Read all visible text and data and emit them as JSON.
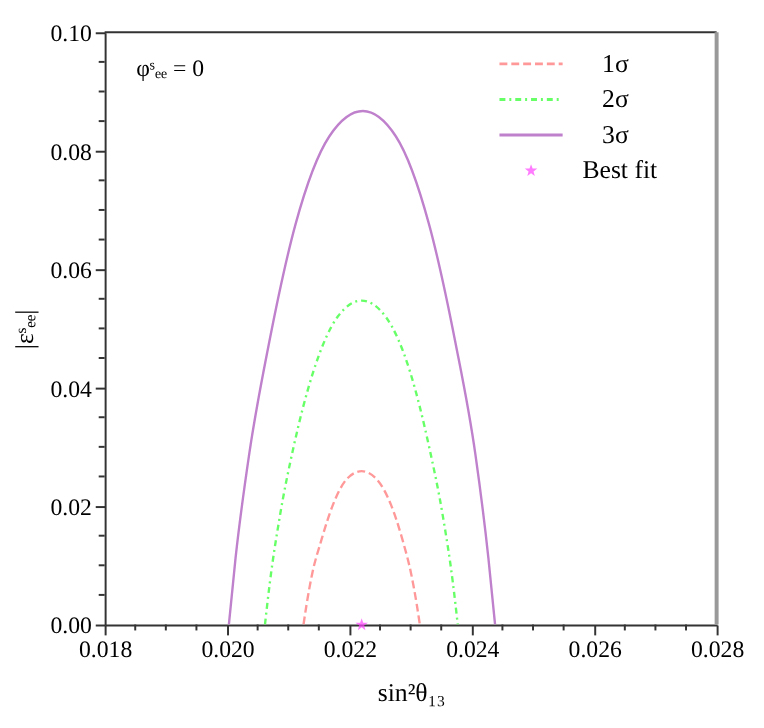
{
  "chart_data": {
    "type": "line",
    "xlabel": "sin²θ₁₃",
    "ylabel": "|εˢₑₑ|",
    "annotations": [
      "φˢₑₑ = 0"
    ],
    "series": [
      {
        "name": "1σ",
        "color": "#ff9999",
        "line_style": "dashed",
        "x": [
          0.02125,
          0.0213,
          0.02139,
          0.02154,
          0.02173,
          0.02196,
          0.0222,
          0.02244,
          0.02268,
          0.02287,
          0.02301,
          0.0231,
          0.02315
        ],
        "values": [
          0,
          0.0034,
          0.0085,
          0.0142,
          0.0202,
          0.0246,
          0.0259,
          0.0246,
          0.0202,
          0.0142,
          0.0085,
          0.0034,
          0
        ]
      },
      {
        "name": "2σ",
        "color": "#66ff66",
        "line_style": "dotted",
        "x": [
          0.02062,
          0.0207,
          0.02086,
          0.02109,
          0.02141,
          0.02181,
          0.0222,
          0.02259,
          0.02299,
          0.0233,
          0.02353,
          0.02369,
          0.02377
        ],
        "values": [
          0,
          0.0071,
          0.0181,
          0.0301,
          0.0427,
          0.052,
          0.0547,
          0.052,
          0.0427,
          0.0301,
          0.0181,
          0.0071,
          0
        ]
      },
      {
        "name": "3σ",
        "color": "#bf80cc",
        "line_style": "solid",
        "x": [
          0.02003,
          0.02014,
          0.02036,
          0.02069,
          0.02112,
          0.02167,
          0.02222,
          0.02276,
          0.0233,
          0.02373,
          0.02406,
          0.02427,
          0.02438
        ],
        "values": [
          0,
          0.0113,
          0.0286,
          0.0477,
          0.0676,
          0.0824,
          0.0867,
          0.0824,
          0.0676,
          0.0477,
          0.0286,
          0.0113,
          0
        ]
      },
      {
        "name": "Best fit",
        "type": "scatter",
        "marker": "star",
        "color": "#ff44ff",
        "x": [
          0.0222
        ],
        "values": [
          0
        ]
      }
    ],
    "xlim": [
      0.018,
      0.028
    ],
    "xticks": [
      0.018,
      {
        "value": 0.0185,
        "label": null
      },
      {
        "value": 0.019,
        "label": null
      },
      {
        "value": 0.0195,
        "label": null
      },
      {
        "value": 0.02,
        "label": "0.020"
      },
      {
        "value": 0.0205,
        "label": null
      },
      {
        "value": 0.021,
        "label": null
      },
      {
        "value": 0.0215,
        "label": null
      },
      0.022,
      {
        "value": 0.0225,
        "label": null
      },
      {
        "value": 0.023,
        "label": null
      },
      {
        "value": 0.0235,
        "label": null
      },
      0.024,
      {
        "value": 0.0245,
        "label": null
      },
      {
        "value": 0.025,
        "label": null
      },
      {
        "value": 0.0255,
        "label": null
      },
      0.026,
      {
        "value": 0.0265,
        "label": null
      },
      {
        "value": 0.027,
        "label": null
      },
      {
        "value": 0.0275,
        "label": null
      },
      0.028
    ],
    "ylim": [
      0,
      0.1
    ],
    "yticks": [
      {
        "value": 0,
        "label": "0.00"
      },
      {
        "value": 0.005,
        "label": null
      },
      {
        "value": 0.01,
        "label": null
      },
      {
        "value": 0.015,
        "label": null
      },
      0.02,
      {
        "value": 0.025,
        "label": null
      },
      {
        "value": 0.03,
        "label": null
      },
      {
        "value": 0.035,
        "label": null
      },
      0.04,
      {
        "value": 0.045,
        "label": null
      },
      {
        "value": 0.05,
        "label": null
      },
      {
        "value": 0.055,
        "label": null
      },
      0.06,
      {
        "value": 0.065,
        "label": null
      },
      {
        "value": 0.07,
        "label": null
      },
      {
        "value": 0.075,
        "label": null
      },
      0.08,
      {
        "value": 0.085,
        "label": null
      },
      {
        "value": 0.09,
        "label": null
      },
      {
        "value": 0.095,
        "label": null
      },
      {
        "value": 0.1,
        "label": "0.10"
      }
    ],
    "grid": false,
    "legend": "top right"
  }
}
